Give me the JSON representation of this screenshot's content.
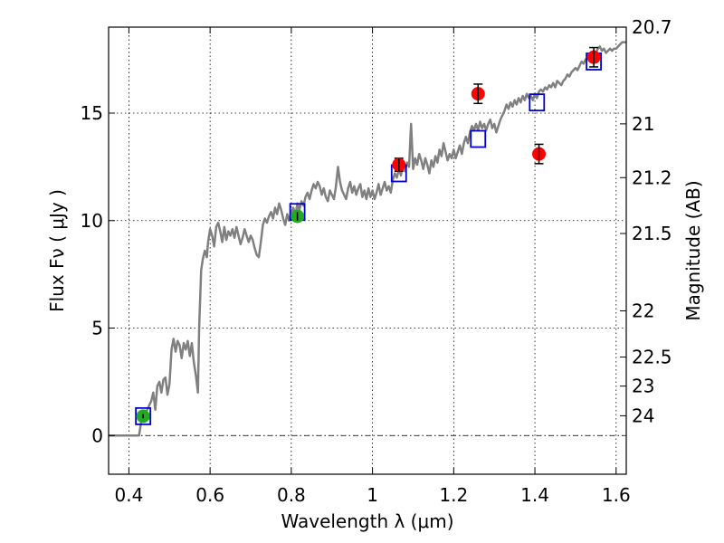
{
  "chart_data": {
    "type": "scatter",
    "xlabel": "Wavelength  λ (μm)",
    "ylabel": "Flux  Fν  ( μJy )",
    "ylabel_right": "Magnitude (AB)",
    "xlim": [
      0.35,
      1.625
    ],
    "ylim": [
      -1.8,
      19.0
    ],
    "grid": true,
    "x_ticks": [
      {
        "value": 0.4,
        "label": "0.4"
      },
      {
        "value": 0.6,
        "label": "0.6"
      },
      {
        "value": 0.8,
        "label": "0.8"
      },
      {
        "value": 1.0,
        "label": "1"
      },
      {
        "value": 1.2,
        "label": "1.2"
      },
      {
        "value": 1.4,
        "label": "1.4"
      },
      {
        "value": 1.6,
        "label": "1.6"
      }
    ],
    "y_ticks": [
      {
        "value": 0,
        "label": "0"
      },
      {
        "value": 5,
        "label": "5"
      },
      {
        "value": 10,
        "label": "10"
      },
      {
        "value": 15,
        "label": "15"
      }
    ],
    "right_ticks": [
      {
        "flux": 19.0,
        "label": "20.7"
      },
      {
        "flux": 14.5,
        "label": "21"
      },
      {
        "flux": 12.0,
        "label": "21.2"
      },
      {
        "flux": 9.4,
        "label": "21.5"
      },
      {
        "flux": 5.8,
        "label": "22"
      },
      {
        "flux": 3.65,
        "label": "22.5"
      },
      {
        "flux": 2.3,
        "label": "23"
      },
      {
        "flux": 0.92,
        "label": "24"
      }
    ],
    "series": [
      {
        "kind": "line",
        "color": "#808080",
        "points": [
          [
            0.35,
            0.0
          ],
          [
            0.425,
            0.0
          ],
          [
            0.43,
            0.6
          ],
          [
            0.445,
            1.2
          ],
          [
            0.455,
            1.6
          ],
          [
            0.46,
            2.0
          ],
          [
            0.465,
            1.2
          ],
          [
            0.47,
            2.3
          ],
          [
            0.475,
            2.5
          ],
          [
            0.48,
            2.0
          ],
          [
            0.485,
            2.6
          ],
          [
            0.49,
            2.7
          ],
          [
            0.495,
            1.9
          ],
          [
            0.5,
            2.4
          ],
          [
            0.505,
            4.0
          ],
          [
            0.51,
            4.5
          ],
          [
            0.515,
            3.9
          ],
          [
            0.52,
            4.4
          ],
          [
            0.525,
            4.2
          ],
          [
            0.53,
            3.6
          ],
          [
            0.535,
            4.3
          ],
          [
            0.54,
            4.0
          ],
          [
            0.545,
            4.4
          ],
          [
            0.55,
            3.7
          ],
          [
            0.555,
            4.3
          ],
          [
            0.56,
            3.4
          ],
          [
            0.565,
            2.8
          ],
          [
            0.57,
            2.0
          ],
          [
            0.573,
            5.0
          ],
          [
            0.578,
            7.7
          ],
          [
            0.582,
            8.2
          ],
          [
            0.587,
            8.6
          ],
          [
            0.592,
            8.3
          ],
          [
            0.595,
            9.0
          ],
          [
            0.6,
            9.6
          ],
          [
            0.605,
            9.3
          ],
          [
            0.61,
            8.8
          ],
          [
            0.615,
            9.7
          ],
          [
            0.62,
            9.9
          ],
          [
            0.625,
            9.5
          ],
          [
            0.63,
            9.0
          ],
          [
            0.635,
            9.7
          ],
          [
            0.64,
            9.1
          ],
          [
            0.645,
            9.5
          ],
          [
            0.65,
            9.3
          ],
          [
            0.655,
            9.6
          ],
          [
            0.66,
            9.2
          ],
          [
            0.665,
            9.7
          ],
          [
            0.67,
            9.3
          ],
          [
            0.675,
            8.9
          ],
          [
            0.68,
            9.2
          ],
          [
            0.685,
            9.6
          ],
          [
            0.69,
            9.3
          ],
          [
            0.695,
            9.0
          ],
          [
            0.7,
            9.3
          ],
          [
            0.705,
            9.1
          ],
          [
            0.71,
            8.7
          ],
          [
            0.715,
            8.4
          ],
          [
            0.72,
            8.3
          ],
          [
            0.725,
            9.0
          ],
          [
            0.73,
            9.8
          ],
          [
            0.735,
            10.1
          ],
          [
            0.74,
            9.9
          ],
          [
            0.745,
            10.2
          ],
          [
            0.75,
            10.4
          ],
          [
            0.755,
            10.1
          ],
          [
            0.76,
            10.6
          ],
          [
            0.765,
            10.3
          ],
          [
            0.77,
            10.8
          ],
          [
            0.775,
            10.5
          ],
          [
            0.78,
            10.1
          ],
          [
            0.785,
            9.8
          ],
          [
            0.79,
            10.3
          ],
          [
            0.795,
            10.0
          ],
          [
            0.8,
            10.4
          ],
          [
            0.805,
            10.6
          ],
          [
            0.81,
            10.2
          ],
          [
            0.815,
            10.8
          ],
          [
            0.82,
            10.5
          ],
          [
            0.825,
            10.9
          ],
          [
            0.83,
            10.7
          ],
          [
            0.835,
            11.1
          ],
          [
            0.84,
            11.3
          ],
          [
            0.845,
            11.0
          ],
          [
            0.85,
            11.4
          ],
          [
            0.855,
            11.7
          ],
          [
            0.86,
            11.5
          ],
          [
            0.865,
            11.8
          ],
          [
            0.87,
            11.6
          ],
          [
            0.875,
            11.2
          ],
          [
            0.88,
            11.5
          ],
          [
            0.885,
            11.1
          ],
          [
            0.89,
            10.9
          ],
          [
            0.895,
            11.4
          ],
          [
            0.9,
            11.2
          ],
          [
            0.905,
            11.0
          ],
          [
            0.91,
            11.6
          ],
          [
            0.915,
            12.5
          ],
          [
            0.92,
            11.8
          ],
          [
            0.925,
            11.4
          ],
          [
            0.93,
            11.2
          ],
          [
            0.935,
            11.0
          ],
          [
            0.94,
            11.5
          ],
          [
            0.945,
            11.8
          ],
          [
            0.95,
            11.3
          ],
          [
            0.955,
            11.6
          ],
          [
            0.96,
            11.2
          ],
          [
            0.965,
            11.5
          ],
          [
            0.97,
            11.7
          ],
          [
            0.975,
            11.1
          ],
          [
            0.98,
            11.4
          ],
          [
            0.985,
            11.0
          ],
          [
            0.99,
            11.5
          ],
          [
            0.995,
            11.1
          ],
          [
            1.0,
            11.4
          ],
          [
            1.005,
            11.0
          ],
          [
            1.01,
            11.3
          ],
          [
            1.015,
            11.7
          ],
          [
            1.02,
            11.2
          ],
          [
            1.025,
            11.5
          ],
          [
            1.03,
            11.8
          ],
          [
            1.035,
            11.4
          ],
          [
            1.04,
            11.6
          ],
          [
            1.045,
            11.3
          ],
          [
            1.05,
            11.9
          ],
          [
            1.055,
            12.2
          ],
          [
            1.06,
            12.0
          ],
          [
            1.065,
            12.4
          ],
          [
            1.07,
            12.1
          ],
          [
            1.075,
            12.6
          ],
          [
            1.08,
            12.3
          ],
          [
            1.085,
            12.7
          ],
          [
            1.09,
            12.5
          ],
          [
            1.095,
            14.5
          ],
          [
            1.1,
            12.4
          ],
          [
            1.105,
            12.9
          ],
          [
            1.11,
            12.6
          ],
          [
            1.115,
            13.1
          ],
          [
            1.12,
            12.8
          ],
          [
            1.125,
            12.4
          ],
          [
            1.13,
            12.9
          ],
          [
            1.135,
            12.6
          ],
          [
            1.14,
            12.2
          ],
          [
            1.145,
            12.8
          ],
          [
            1.15,
            12.5
          ],
          [
            1.155,
            13.0
          ],
          [
            1.16,
            12.7
          ],
          [
            1.165,
            13.3
          ],
          [
            1.17,
            13.0
          ],
          [
            1.175,
            13.6
          ],
          [
            1.18,
            13.2
          ],
          [
            1.185,
            12.8
          ],
          [
            1.19,
            13.1
          ],
          [
            1.195,
            12.9
          ],
          [
            1.2,
            13.3
          ],
          [
            1.205,
            12.9
          ],
          [
            1.21,
            13.2
          ],
          [
            1.215,
            13.5
          ],
          [
            1.22,
            13.1
          ],
          [
            1.225,
            13.6
          ],
          [
            1.23,
            13.9
          ],
          [
            1.235,
            13.6
          ],
          [
            1.24,
            14.1
          ],
          [
            1.245,
            14.4
          ],
          [
            1.25,
            14.2
          ],
          [
            1.255,
            14.5
          ],
          [
            1.26,
            14.2
          ],
          [
            1.265,
            14.6
          ],
          [
            1.27,
            14.3
          ],
          [
            1.275,
            14.5
          ],
          [
            1.28,
            14.2
          ],
          [
            1.285,
            14.5
          ],
          [
            1.29,
            14.7
          ],
          [
            1.295,
            14.3
          ],
          [
            1.3,
            14.5
          ],
          [
            1.305,
            14.1
          ],
          [
            1.31,
            14.4
          ],
          [
            1.315,
            14.7
          ],
          [
            1.32,
            14.9
          ],
          [
            1.325,
            15.1
          ],
          [
            1.33,
            15.4
          ],
          [
            1.335,
            15.2
          ],
          [
            1.34,
            15.5
          ],
          [
            1.345,
            15.3
          ],
          [
            1.35,
            15.6
          ],
          [
            1.355,
            15.4
          ],
          [
            1.36,
            15.7
          ],
          [
            1.365,
            15.5
          ],
          [
            1.37,
            15.8
          ],
          [
            1.375,
            15.6
          ],
          [
            1.38,
            15.9
          ],
          [
            1.385,
            15.7
          ],
          [
            1.39,
            15.8
          ],
          [
            1.395,
            15.6
          ],
          [
            1.4,
            15.9
          ],
          [
            1.405,
            15.7
          ],
          [
            1.41,
            16.0
          ],
          [
            1.415,
            16.1
          ],
          [
            1.42,
            16.0
          ],
          [
            1.425,
            16.2
          ],
          [
            1.43,
            16.1
          ],
          [
            1.435,
            16.3
          ],
          [
            1.44,
            16.2
          ],
          [
            1.445,
            16.4
          ],
          [
            1.45,
            16.2
          ],
          [
            1.455,
            16.5
          ],
          [
            1.46,
            16.4
          ],
          [
            1.465,
            16.3
          ],
          [
            1.47,
            16.5
          ],
          [
            1.475,
            16.6
          ],
          [
            1.48,
            16.8
          ],
          [
            1.485,
            16.7
          ],
          [
            1.49,
            16.9
          ],
          [
            1.495,
            17.0
          ],
          [
            1.5,
            17.1
          ],
          [
            1.505,
            17.0
          ],
          [
            1.51,
            17.2
          ],
          [
            1.515,
            17.4
          ],
          [
            1.52,
            17.3
          ],
          [
            1.525,
            17.5
          ],
          [
            1.53,
            17.6
          ],
          [
            1.535,
            17.5
          ],
          [
            1.54,
            17.7
          ],
          [
            1.545,
            17.9
          ],
          [
            1.55,
            17.8
          ],
          [
            1.555,
            18.0
          ],
          [
            1.56,
            18.1
          ],
          [
            1.565,
            17.9
          ],
          [
            1.57,
            18.0
          ],
          [
            1.575,
            17.8
          ],
          [
            1.58,
            17.9
          ],
          [
            1.585,
            18.0
          ],
          [
            1.59,
            17.9
          ],
          [
            1.595,
            18.0
          ],
          [
            1.6,
            18.0
          ],
          [
            1.605,
            18.1
          ],
          [
            1.61,
            18.2
          ],
          [
            1.615,
            18.3
          ],
          [
            1.625,
            18.3
          ]
        ]
      },
      {
        "kind": "scatter",
        "marker": "square-open",
        "color": "#0000cc",
        "points": [
          [
            0.435,
            0.9
          ],
          [
            0.815,
            10.4
          ],
          [
            1.065,
            12.2
          ],
          [
            1.26,
            13.8
          ],
          [
            1.405,
            15.5
          ],
          [
            1.545,
            17.4
          ]
        ]
      },
      {
        "kind": "scatter",
        "marker": "circle",
        "color": "#22aa22",
        "points": [
          [
            0.435,
            0.9
          ],
          [
            0.815,
            10.2
          ]
        ],
        "yerr": [
          0.1,
          0.2
        ]
      },
      {
        "kind": "scatter",
        "marker": "circle",
        "color": "#ff0000",
        "points": [
          [
            1.065,
            12.6
          ],
          [
            1.26,
            15.9
          ],
          [
            1.41,
            13.1
          ],
          [
            1.545,
            17.6
          ]
        ],
        "yerr": [
          0.3,
          0.45,
          0.45,
          0.45
        ]
      }
    ],
    "zero_line": {
      "y": 0,
      "style": "dashdot"
    }
  }
}
